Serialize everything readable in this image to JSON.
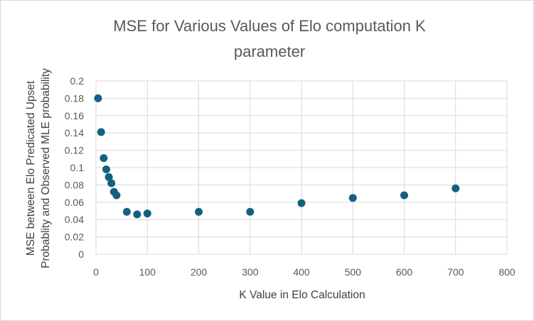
{
  "chart_data": {
    "type": "scatter",
    "title_lines": [
      "MSE for Various Values of Elo computation K",
      "parameter"
    ],
    "xlabel": "K Value in Elo Calculation",
    "ylabel_lines": [
      "MSE between Elo Predicated Upset",
      "Probablity and Observed MLE probability"
    ],
    "xlim": [
      0,
      800
    ],
    "ylim": [
      0,
      0.2
    ],
    "x_ticks": [
      "0",
      "100",
      "200",
      "300",
      "400",
      "500",
      "600",
      "700",
      "800"
    ],
    "y_ticks": [
      "0",
      "0.02",
      "0.04",
      "0.06",
      "0.08",
      "0.1",
      "0.12",
      "0.14",
      "0.16",
      "0.18",
      "0.2"
    ],
    "grid": true,
    "legend": "none",
    "marker_color": "#156082",
    "series": [
      {
        "points": [
          {
            "x": 4,
            "y": 0.18
          },
          {
            "x": 10,
            "y": 0.141
          },
          {
            "x": 15,
            "y": 0.111
          },
          {
            "x": 20,
            "y": 0.098
          },
          {
            "x": 25,
            "y": 0.089
          },
          {
            "x": 30,
            "y": 0.082
          },
          {
            "x": 35,
            "y": 0.072
          },
          {
            "x": 40,
            "y": 0.068
          },
          {
            "x": 60,
            "y": 0.049
          },
          {
            "x": 80,
            "y": 0.046
          },
          {
            "x": 100,
            "y": 0.047
          },
          {
            "x": 200,
            "y": 0.049
          },
          {
            "x": 300,
            "y": 0.049
          },
          {
            "x": 400,
            "y": 0.059
          },
          {
            "x": 500,
            "y": 0.065
          },
          {
            "x": 600,
            "y": 0.068
          },
          {
            "x": 700,
            "y": 0.076
          }
        ]
      }
    ]
  }
}
